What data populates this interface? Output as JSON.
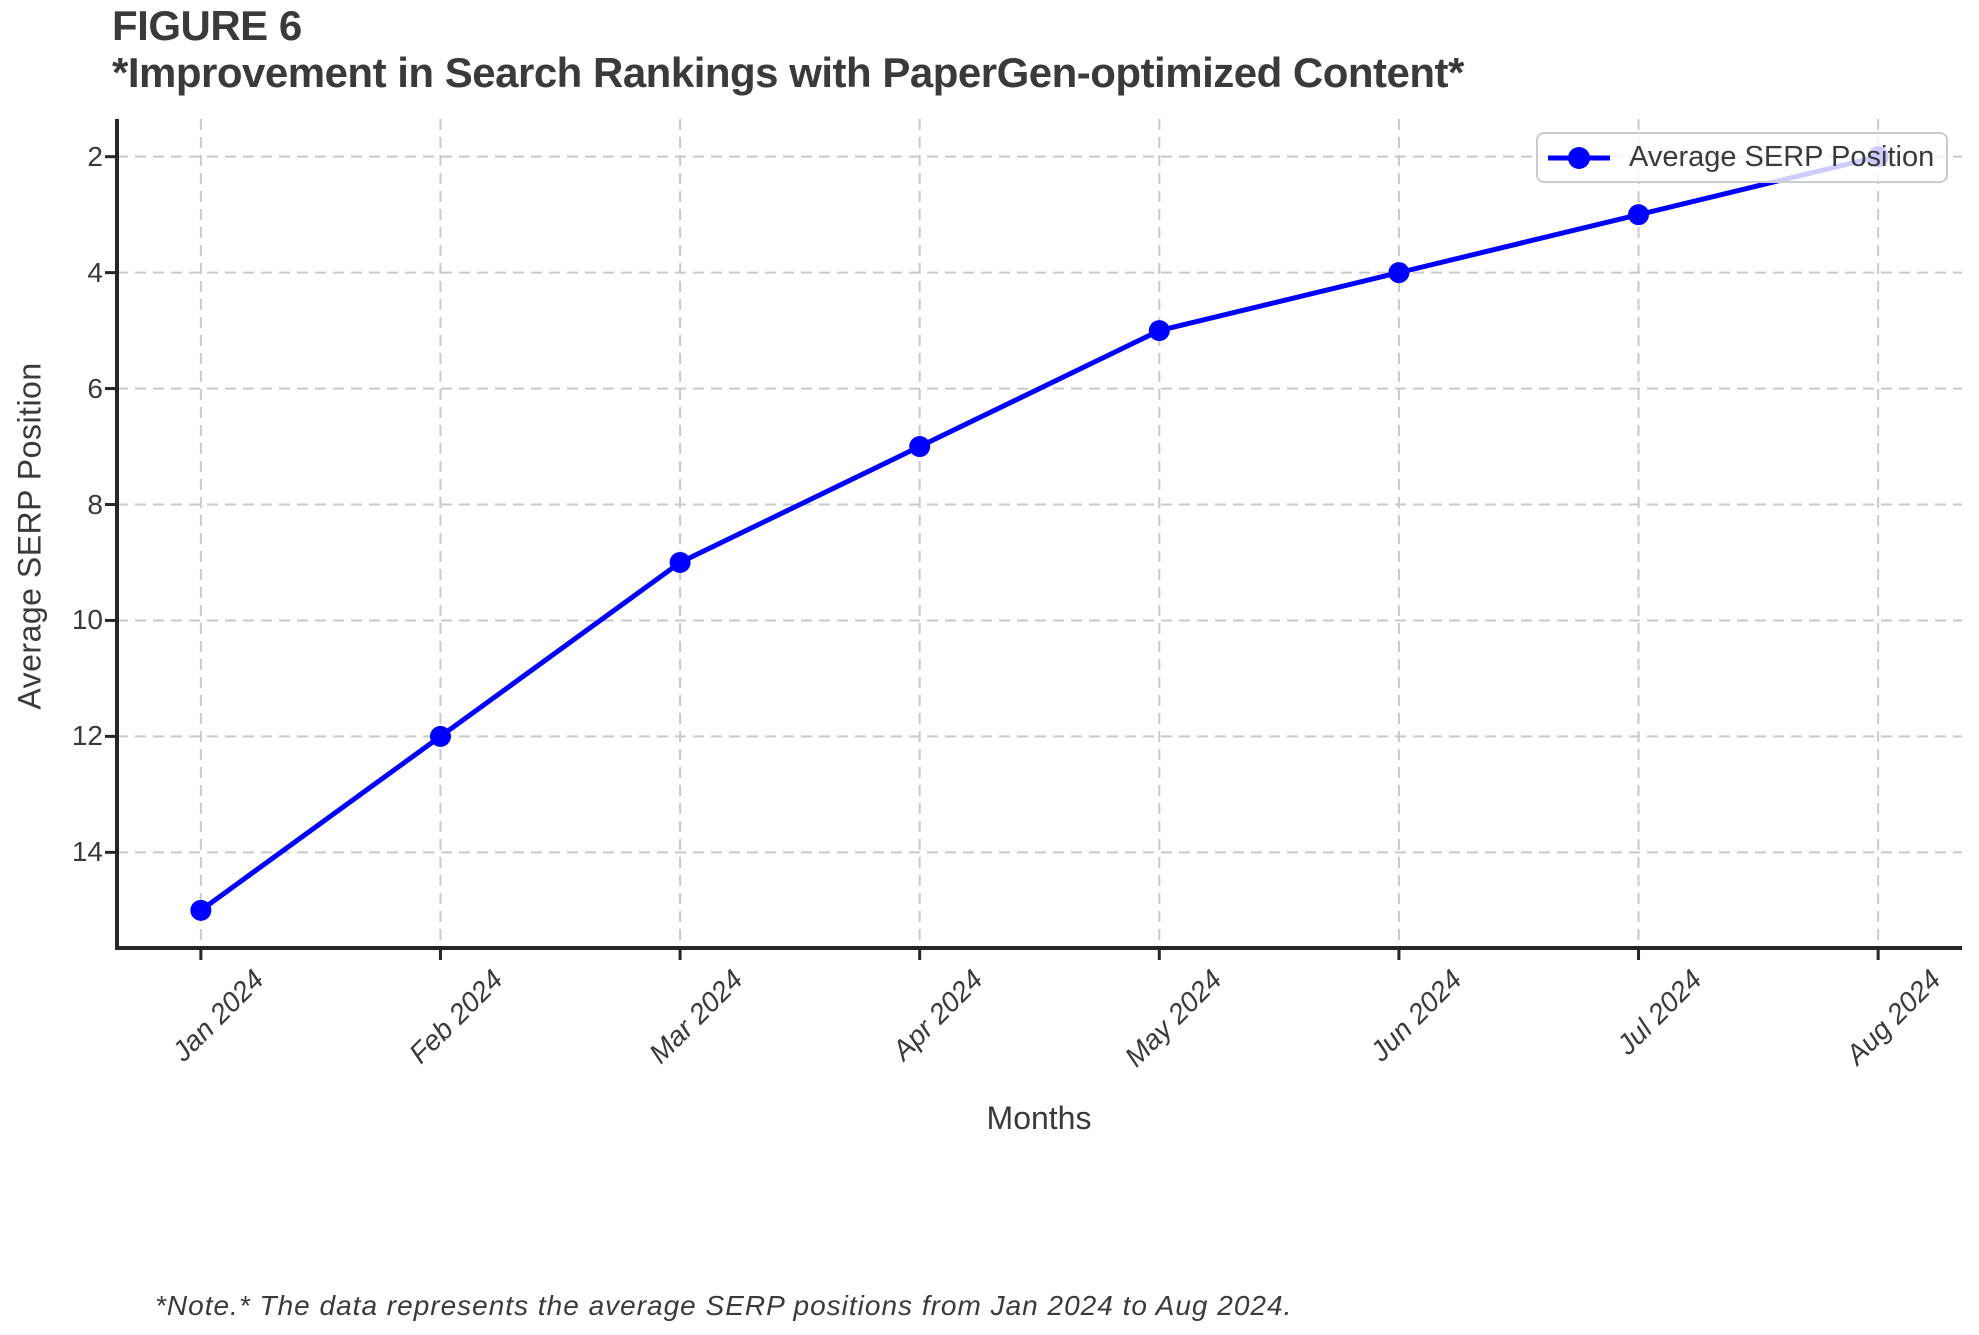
{
  "figure": {
    "label": "FIGURE 6",
    "title": "*Improvement in Search Rankings with PaperGen-optimized Content*",
    "note": "*Note.* The data represents the average SERP positions from Jan 2024 to Aug 2024."
  },
  "chart_data": {
    "type": "line",
    "categories": [
      "Jan 2024",
      "Feb 2024",
      "Mar 2024",
      "Apr 2024",
      "May 2024",
      "Jun 2024",
      "Jul 2024",
      "Aug 2024"
    ],
    "series": [
      {
        "name": "Average SERP Position",
        "values": [
          15,
          12,
          9,
          7,
          5,
          4,
          3,
          2
        ],
        "color": "#0000ff",
        "marker": "circle"
      }
    ],
    "xlabel": "Months",
    "ylabel": "Average SERP Position",
    "yticks": [
      2,
      4,
      6,
      8,
      10,
      12,
      14
    ],
    "ylim": [
      15.65,
      1.35
    ],
    "y_axis_inverted": true,
    "grid": true,
    "grid_style": "dashed",
    "legend": {
      "label": "Average SERP Position",
      "position": "upper right"
    }
  },
  "colors": {
    "line": "#0000ff",
    "grid": "#c9c9c9",
    "spine": "#262626",
    "text": "#3a3a3a",
    "legend_border": "#cbcbcb",
    "background": "#ffffff"
  }
}
